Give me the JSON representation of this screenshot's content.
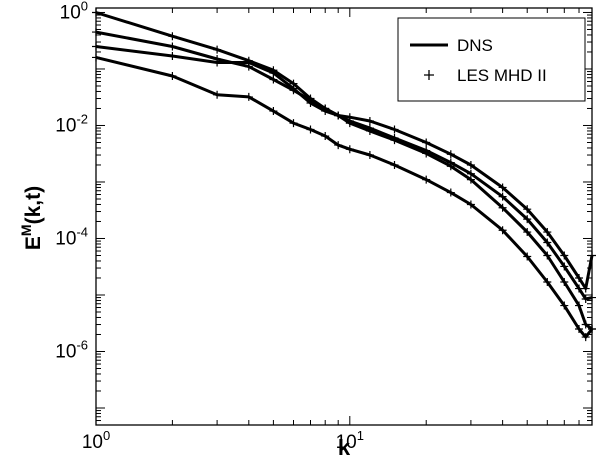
{
  "chart_data": {
    "type": "line",
    "x_scale": "log",
    "y_scale": "log",
    "xlim": [
      1,
      90
    ],
    "ylim": [
      5e-08,
      1.2
    ],
    "xlabel": "k",
    "ylabel": {
      "base": "E",
      "sup": "M",
      "rest": "(k,t)"
    },
    "x_ticks": [
      {
        "value": 1,
        "base": "10",
        "exp": "0"
      },
      {
        "value": 10,
        "base": "10",
        "exp": "1"
      }
    ],
    "y_ticks": [
      {
        "value": 1,
        "base": "10",
        "exp": "0"
      },
      {
        "value": 0.01,
        "base": "10",
        "exp": "-2"
      },
      {
        "value": 0.0001,
        "base": "10",
        "exp": "-4"
      },
      {
        "value": 1e-06,
        "base": "10",
        "exp": "-6"
      }
    ],
    "legend": {
      "position": "top-right",
      "entries": [
        {
          "label": "DNS",
          "style": "solid-line"
        },
        {
          "label": "LES MHD II",
          "style": "plus-marker"
        }
      ]
    },
    "line_color": "#000000",
    "series": [
      {
        "x": [
          1,
          2,
          3,
          4,
          5,
          6,
          7,
          8,
          9,
          10,
          12,
          15,
          20,
          25,
          30,
          40,
          50,
          60,
          70,
          80,
          85,
          90
        ],
        "y": [
          1.0,
          0.38,
          0.22,
          0.14,
          0.095,
          0.055,
          0.03,
          0.02,
          0.015,
          0.011,
          0.008,
          0.0055,
          0.0032,
          0.0019,
          0.0011,
          0.00035,
          0.00013,
          5e-05,
          1.7e-05,
          6.5e-06,
          3e-06,
          2.5e-06
        ]
      },
      {
        "x": [
          1,
          2,
          3,
          4,
          5,
          6,
          7,
          8,
          9,
          10,
          12,
          15,
          20,
          25,
          30,
          40,
          50,
          60,
          70,
          80,
          85,
          90
        ],
        "y": [
          0.45,
          0.25,
          0.15,
          0.11,
          0.065,
          0.042,
          0.028,
          0.02,
          0.015,
          0.012,
          0.009,
          0.006,
          0.0036,
          0.0022,
          0.0014,
          0.00055,
          0.00022,
          8.5e-05,
          3.2e-05,
          1.3e-05,
          8.5e-06,
          9e-06
        ]
      },
      {
        "x": [
          1,
          2,
          3,
          4,
          5,
          6,
          7,
          8,
          9,
          10,
          12,
          15,
          20,
          25,
          30,
          40,
          50,
          60,
          70,
          80,
          85,
          90
        ],
        "y": [
          0.25,
          0.17,
          0.13,
          0.13,
          0.085,
          0.045,
          0.025,
          0.018,
          0.015,
          0.014,
          0.012,
          0.0085,
          0.005,
          0.0031,
          0.002,
          0.0008,
          0.00033,
          0.00013,
          5e-05,
          2e-05,
          1.3e-05,
          5e-05
        ]
      },
      {
        "x": [
          1,
          2,
          3,
          4,
          5,
          6,
          7,
          8,
          9,
          10,
          12,
          15,
          20,
          25,
          30,
          40,
          50,
          60,
          70,
          80,
          85,
          90
        ],
        "y": [
          0.16,
          0.075,
          0.035,
          0.032,
          0.018,
          0.011,
          0.0085,
          0.0065,
          0.0045,
          0.0038,
          0.003,
          0.002,
          0.0011,
          0.00065,
          0.0004,
          0.00014,
          4.8e-05,
          1.7e-05,
          6.5e-06,
          2.5e-06,
          1.8e-06,
          2.5e-06
        ]
      }
    ]
  }
}
